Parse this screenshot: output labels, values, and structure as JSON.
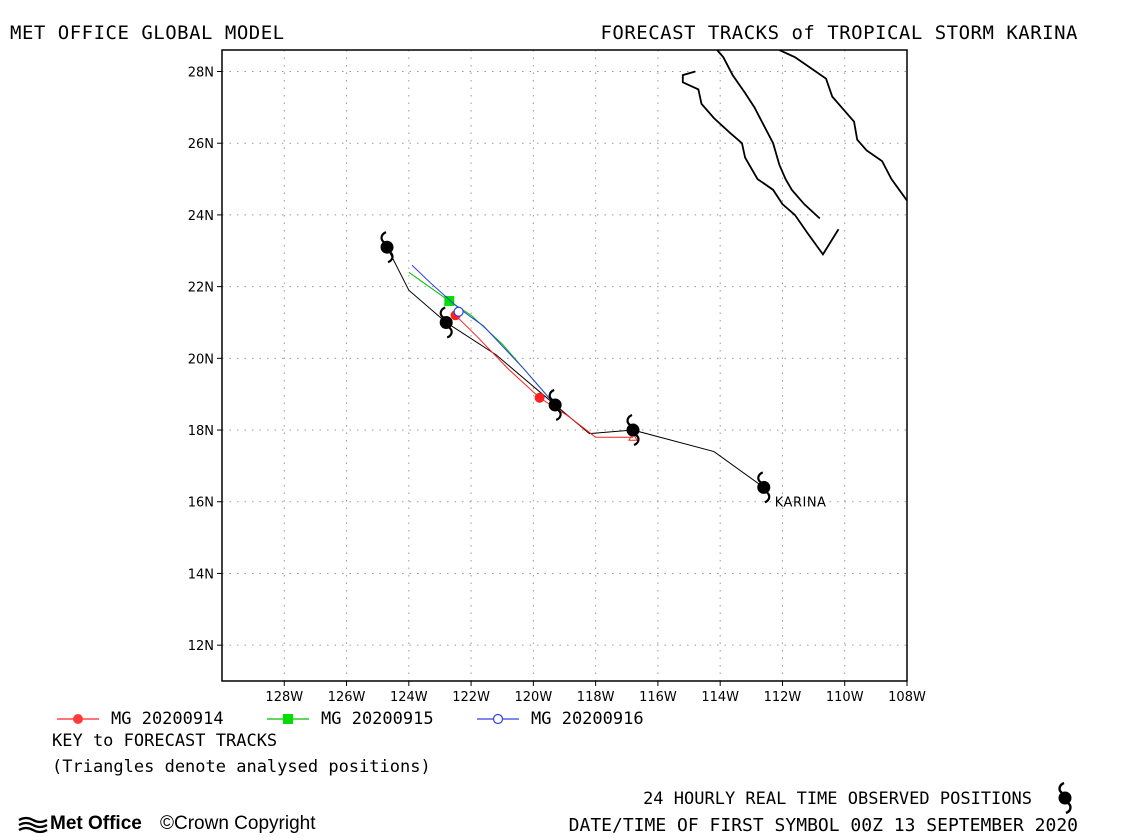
{
  "header": {
    "left_title": "MET OFFICE GLOBAL MODEL",
    "right_title": "FORECAST TRACKS of TROPICAL STORM KARINA"
  },
  "chart_data": {
    "type": "map",
    "xlim": [
      -130,
      -108
    ],
    "ylim": [
      11,
      28.6
    ],
    "grid": true,
    "x_ticks": [
      {
        "v": -128,
        "label": "128W"
      },
      {
        "v": -126,
        "label": "126W"
      },
      {
        "v": -124,
        "label": "124W"
      },
      {
        "v": -122,
        "label": "122W"
      },
      {
        "v": -120,
        "label": "120W"
      },
      {
        "v": -118,
        "label": "118W"
      },
      {
        "v": -116,
        "label": "116W"
      },
      {
        "v": -114,
        "label": "114W"
      },
      {
        "v": -112,
        "label": "112W"
      },
      {
        "v": -110,
        "label": "110W"
      },
      {
        "v": -108,
        "label": "108W"
      }
    ],
    "y_ticks": [
      {
        "v": 12,
        "label": "12N"
      },
      {
        "v": 14,
        "label": "14N"
      },
      {
        "v": 16,
        "label": "16N"
      },
      {
        "v": 18,
        "label": "18N"
      },
      {
        "v": 20,
        "label": "20N"
      },
      {
        "v": 22,
        "label": "22N"
      },
      {
        "v": 24,
        "label": "24N"
      },
      {
        "v": 26,
        "label": "26N"
      },
      {
        "v": 28,
        "label": "28N"
      }
    ],
    "storm_label": "KARINA",
    "observed_track": {
      "color": "#000000",
      "points": [
        [
          -112.6,
          16.4
        ],
        [
          -114.2,
          17.4
        ],
        [
          -116.8,
          18.0
        ],
        [
          -118.2,
          17.9
        ],
        [
          -119.3,
          18.7
        ],
        [
          -121.2,
          20.1
        ],
        [
          -122.8,
          21.0
        ],
        [
          -124.0,
          21.9
        ],
        [
          -124.7,
          23.1
        ]
      ],
      "storm_symbols": [
        [
          -112.6,
          16.4
        ],
        [
          -116.8,
          18.0
        ],
        [
          -119.3,
          18.7
        ],
        [
          -122.8,
          21.0
        ],
        [
          -124.7,
          23.1
        ]
      ]
    },
    "forecast_tracks": [
      {
        "name": "MG 20200914",
        "color": "#ff2020",
        "marker": "circle",
        "points": [
          [
            -116.8,
            17.8
          ],
          [
            -118.0,
            17.8
          ],
          [
            -118.9,
            18.4
          ],
          [
            -119.8,
            18.9
          ],
          [
            -120.8,
            19.7
          ],
          [
            -121.8,
            20.6
          ],
          [
            -122.5,
            21.2
          ]
        ],
        "symbols": [
          [
            -119.8,
            18.9
          ],
          [
            -122.5,
            21.2
          ]
        ]
      },
      {
        "name": "MG 20200915",
        "color": "#00c000",
        "marker": "square",
        "points": [
          [
            -119.3,
            18.7
          ],
          [
            -120.2,
            19.6
          ],
          [
            -121.0,
            20.4
          ],
          [
            -122.0,
            21.2
          ],
          [
            -122.7,
            21.6
          ],
          [
            -124.0,
            22.4
          ]
        ],
        "symbols": [
          [
            -122.7,
            21.6
          ]
        ]
      },
      {
        "name": "MG 20200916",
        "color": "#3040e0",
        "marker": "circle-open",
        "points": [
          [
            -119.3,
            18.7
          ],
          [
            -120.3,
            19.7
          ],
          [
            -121.6,
            20.9
          ],
          [
            -122.4,
            21.4
          ],
          [
            -123.3,
            22.1
          ],
          [
            -123.9,
            22.6
          ]
        ],
        "symbols": [
          [
            -122.4,
            21.3
          ]
        ]
      }
    ],
    "coastlines": [
      [
        [
          -110.2,
          23.6
        ],
        [
          -110.7,
          22.9
        ],
        [
          -111.2,
          23.5
        ],
        [
          -111.6,
          24.0
        ],
        [
          -112.0,
          24.3
        ],
        [
          -112.3,
          24.7
        ],
        [
          -112.8,
          25.0
        ],
        [
          -113.2,
          25.6
        ],
        [
          -113.3,
          26.0
        ],
        [
          -113.7,
          26.3
        ],
        [
          -114.2,
          26.7
        ],
        [
          -114.6,
          27.1
        ],
        [
          -114.7,
          27.5
        ],
        [
          -115.2,
          27.7
        ],
        [
          -115.2,
          27.9
        ],
        [
          -114.8,
          28.0
        ]
      ],
      [
        [
          -110.8,
          23.9
        ],
        [
          -111.3,
          24.3
        ],
        [
          -111.7,
          24.7
        ],
        [
          -111.9,
          25.0
        ],
        [
          -112.1,
          25.4
        ],
        [
          -112.3,
          26.0
        ],
        [
          -112.6,
          26.5
        ],
        [
          -112.9,
          27.0
        ],
        [
          -113.2,
          27.4
        ],
        [
          -113.6,
          27.9
        ],
        [
          -113.9,
          28.4
        ],
        [
          -114.1,
          28.6
        ]
      ],
      [
        [
          -108.0,
          24.4
        ],
        [
          -108.5,
          25.0
        ],
        [
          -108.8,
          25.5
        ],
        [
          -109.3,
          25.8
        ],
        [
          -109.6,
          26.1
        ],
        [
          -109.7,
          26.6
        ],
        [
          -110.0,
          26.9
        ],
        [
          -110.4,
          27.3
        ],
        [
          -110.6,
          27.8
        ],
        [
          -111.1,
          28.1
        ],
        [
          -111.6,
          28.4
        ],
        [
          -112.1,
          28.6
        ]
      ]
    ]
  },
  "legend": {
    "items": [
      {
        "label": "MG 20200914",
        "color": "#ff2020",
        "marker": "circle"
      },
      {
        "label": "MG 20200915",
        "color": "#00c000",
        "marker": "square"
      },
      {
        "label": "MG 20200916",
        "color": "#3040e0",
        "marker": "circle-open"
      }
    ]
  },
  "footer": {
    "key_title": "KEY to FORECAST TRACKS",
    "key_note": "(Triangles denote analysed positions)",
    "observed_label": "24 HOURLY REAL TIME OBSERVED POSITIONS",
    "date_line": "DATE/TIME OF FIRST SYMBOL 00Z 13 SEPTEMBER 2020",
    "logo_text": "Met Office",
    "copyright_text": "©Crown Copyright"
  }
}
